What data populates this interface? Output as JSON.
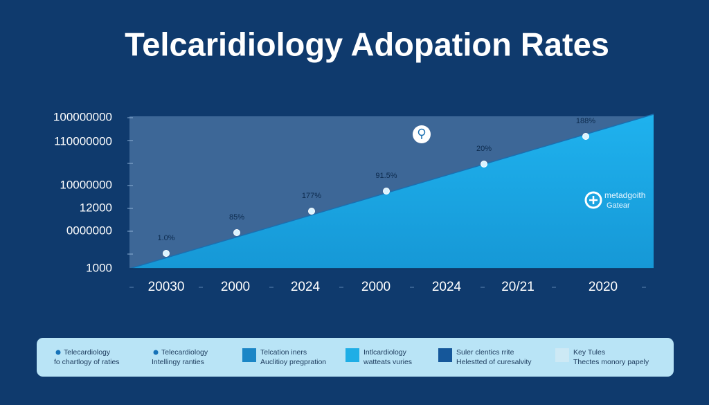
{
  "title": "Telcaridiology Adopation Rates",
  "y_axis_labels": [
    "100000000",
    "110000000",
    "10000000",
    "12000",
    "0000000",
    "1000"
  ],
  "x_axis_labels": [
    "20030",
    "2000",
    "2024",
    "2000",
    "2024",
    "20/21",
    "2020"
  ],
  "point_labels": [
    "1.0%",
    "85%",
    "177%",
    "91.5%",
    "20%",
    "188%"
  ],
  "annotation": {
    "line1": "metadgoith",
    "line2": "Gatear"
  },
  "legend": [
    {
      "line1": "Telecardiology",
      "line2": "fo chartlogy of raties"
    },
    {
      "line1": "Telecardiology",
      "line2": "Intellingy ranties"
    },
    {
      "line1": "Telcation iners",
      "line2": "Auclitioy pregpration"
    },
    {
      "line1": "Intlcardiology",
      "line2": "watteats vuries"
    },
    {
      "line1": "Suler clentics rrite",
      "line2": "Helestted of curesalvity"
    },
    {
      "line1": "Key Tules",
      "line2": "Thectes monory papely"
    }
  ]
}
